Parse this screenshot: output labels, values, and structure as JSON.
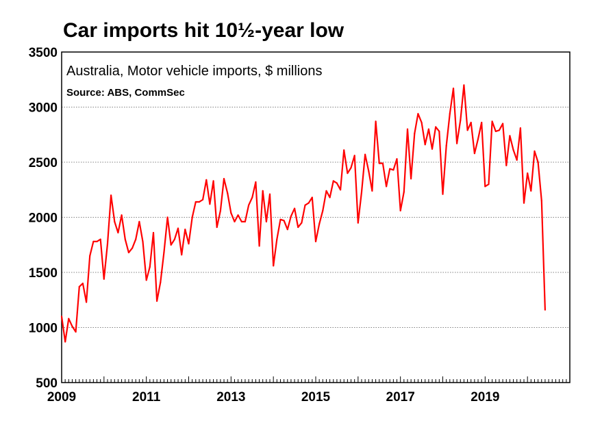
{
  "chart_data": {
    "type": "line",
    "title": "Car imports hit 10½-year low",
    "subtitle": "Australia, Motor vehicle imports, $ millions",
    "source": "Source: ABS, CommSec",
    "xlabel": "",
    "ylabel": "",
    "ylim": [
      500,
      3500
    ],
    "yticks": [
      500,
      1000,
      1500,
      2000,
      2500,
      3000,
      3500
    ],
    "xlim": [
      2009.0,
      2021.0
    ],
    "xticks": [
      2009,
      2011,
      2013,
      2015,
      2017,
      2019
    ],
    "xtick_labels": [
      "2009",
      "2011",
      "2013",
      "2015",
      "2017",
      "2019"
    ],
    "grid": true,
    "line_color": "#ff0000",
    "series": [
      {
        "name": "Motor vehicle imports",
        "start": "2009-01",
        "frequency": "monthly",
        "values": [
          1100,
          870,
          1080,
          1010,
          960,
          1370,
          1400,
          1230,
          1650,
          1780,
          1780,
          1800,
          1440,
          1760,
          2200,
          1960,
          1860,
          2020,
          1800,
          1680,
          1720,
          1800,
          1960,
          1780,
          1430,
          1550,
          1860,
          1240,
          1410,
          1680,
          2000,
          1750,
          1800,
          1900,
          1660,
          1890,
          1760,
          2000,
          2140,
          2140,
          2160,
          2340,
          2120,
          2330,
          1910,
          2060,
          2350,
          2220,
          2040,
          1960,
          2020,
          1960,
          1960,
          2110,
          2180,
          2320,
          1740,
          2240,
          1960,
          2210,
          1560,
          1800,
          1980,
          1970,
          1890,
          2010,
          2080,
          1910,
          1950,
          2110,
          2130,
          2180,
          1780,
          1940,
          2060,
          2240,
          2180,
          2330,
          2310,
          2250,
          2610,
          2400,
          2450,
          2560,
          1950,
          2230,
          2570,
          2420,
          2240,
          2870,
          2490,
          2490,
          2280,
          2440,
          2430,
          2530,
          2060,
          2230,
          2800,
          2350,
          2760,
          2940,
          2860,
          2660,
          2800,
          2620,
          2820,
          2780,
          2210,
          2650,
          2940,
          3170,
          2670,
          2880,
          3200,
          2790,
          2860,
          2580,
          2710,
          2860,
          2280,
          2300,
          2870,
          2780,
          2790,
          2850,
          2470,
          2740,
          2610,
          2520,
          2810,
          2130,
          2400,
          2240,
          2600,
          2500,
          2150,
          1160
        ]
      }
    ]
  }
}
